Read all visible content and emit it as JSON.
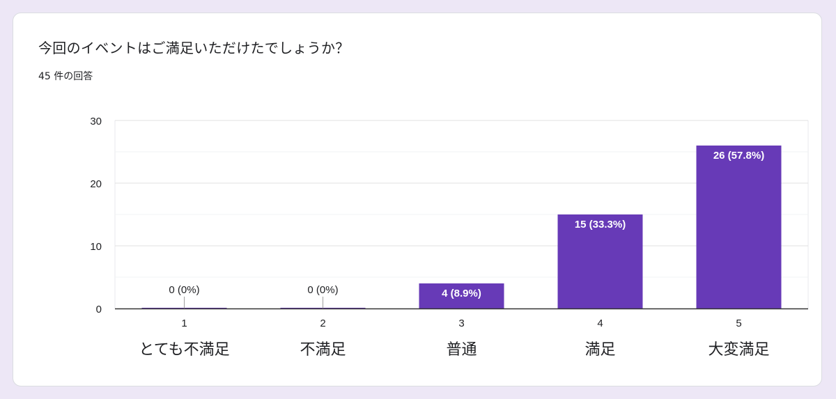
{
  "question": {
    "title": "今回のイベントはご満足いただけたでしょうか？",
    "response_count": "45 件の回答"
  },
  "colors": {
    "bar": "#673ab7",
    "background": "#ede7f6",
    "card": "#ffffff",
    "grid": "#e8eaed",
    "axis": "#5f6368"
  },
  "chart_data": {
    "type": "bar",
    "categories": [
      "1",
      "2",
      "3",
      "4",
      "5"
    ],
    "category_labels": [
      "とても不満足",
      "不満足",
      "普通",
      "満足",
      "大変満足"
    ],
    "values": [
      0,
      0,
      4,
      15,
      26
    ],
    "data_labels": [
      "0 (0%)",
      "0 (0%)",
      "4 (8.9%)",
      "15 (33.3%)",
      "26 (57.8%)"
    ],
    "yticks": [
      "0",
      "10",
      "20",
      "30"
    ],
    "ylim": [
      0,
      30
    ],
    "grid": true,
    "title": "今回のイベントはご満足いただけたでしょうか？"
  }
}
